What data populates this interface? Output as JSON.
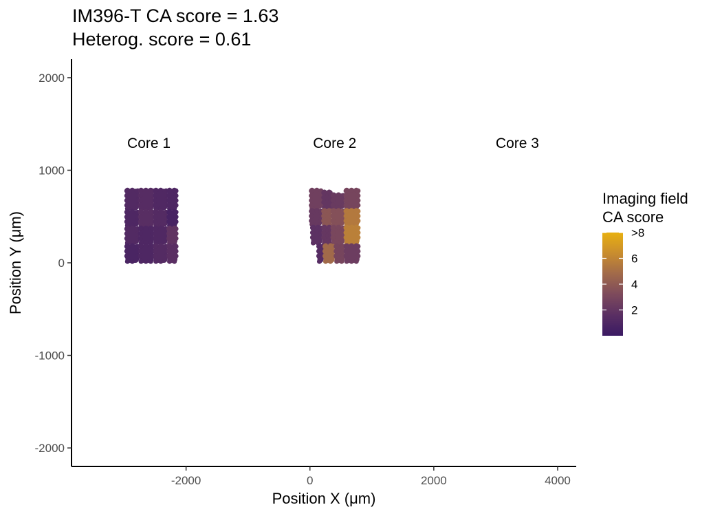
{
  "chart_data": {
    "type": "scatter",
    "title": "IM396-T  CA score = 1.63",
    "subtitle": "Heterog. score = 0.61",
    "xlabel": "Position X (μm)",
    "ylabel": "Position Y (μm)",
    "xlim": [
      -3850,
      4300
    ],
    "ylim": [
      -2200,
      2200
    ],
    "x_ticks": [
      -2000,
      0,
      2000,
      4000
    ],
    "x_tick_labels": [
      "-2000",
      "0",
      "2000",
      "4000"
    ],
    "y_ticks": [
      2000,
      1000,
      0,
      -1000,
      -2000
    ],
    "y_tick_labels": [
      "2000",
      "1000",
      "0",
      "-1000",
      "-2000"
    ],
    "grid": false,
    "legend_position": "right",
    "core_labels": [
      {
        "text": "Core 1",
        "x": -2600,
        "y": 1240
      },
      {
        "text": "Core 2",
        "x": 400,
        "y": 1240
      },
      {
        "text": "Core 3",
        "x": 3350,
        "y": 1240
      }
    ],
    "tiles": [
      {
        "x0": -2980,
        "x1": -2760,
        "y0": 570,
        "y1": 800,
        "ca": 1.2
      },
      {
        "x0": -2760,
        "x1": -2520,
        "y0": 570,
        "y1": 800,
        "ca": 1.4
      },
      {
        "x0": -2520,
        "x1": -2300,
        "y0": 570,
        "y1": 800,
        "ca": 1.1
      },
      {
        "x0": -2300,
        "x1": -2140,
        "y0": 570,
        "y1": 800,
        "ca": 1.0
      },
      {
        "x0": -2980,
        "x1": -2760,
        "y0": 390,
        "y1": 570,
        "ca": 1.0
      },
      {
        "x0": -2760,
        "x1": -2520,
        "y0": 390,
        "y1": 570,
        "ca": 1.5
      },
      {
        "x0": -2520,
        "x1": -2300,
        "y0": 390,
        "y1": 570,
        "ca": 1.3
      },
      {
        "x0": -2300,
        "x1": -2140,
        "y0": 390,
        "y1": 570,
        "ca": 0.7
      },
      {
        "x0": -2980,
        "x1": -2760,
        "y0": 200,
        "y1": 390,
        "ca": 1.2
      },
      {
        "x0": -2760,
        "x1": -2520,
        "y0": 200,
        "y1": 390,
        "ca": 1.0
      },
      {
        "x0": -2520,
        "x1": -2300,
        "y0": 200,
        "y1": 390,
        "ca": 1.1
      },
      {
        "x0": -2300,
        "x1": -2140,
        "y0": 200,
        "y1": 390,
        "ca": 1.9
      },
      {
        "x0": -2980,
        "x1": -2760,
        "y0": 0,
        "y1": 200,
        "ca": 0.8
      },
      {
        "x0": -2760,
        "x1": -2520,
        "y0": 0,
        "y1": 200,
        "ca": 1.0
      },
      {
        "x0": -2520,
        "x1": -2300,
        "y0": 0,
        "y1": 200,
        "ca": 1.3
      },
      {
        "x0": -2300,
        "x1": -2140,
        "y0": 0,
        "y1": 200,
        "ca": 1.6
      },
      {
        "x0": 0,
        "x1": 200,
        "y0": 580,
        "y1": 800,
        "ca": 2.6
      },
      {
        "x0": 200,
        "x1": 350,
        "y0": 580,
        "y1": 780,
        "ca": 2.0
      },
      {
        "x0": 350,
        "x1": 560,
        "y0": 580,
        "y1": 750,
        "ca": 2.3
      },
      {
        "x0": 560,
        "x1": 800,
        "y0": 580,
        "y1": 800,
        "ca": 2.9
      },
      {
        "x0": 0,
        "x1": 200,
        "y0": 400,
        "y1": 580,
        "ca": 2.2
      },
      {
        "x0": 200,
        "x1": 350,
        "y0": 400,
        "y1": 580,
        "ca": 3.8
      },
      {
        "x0": 350,
        "x1": 560,
        "y0": 400,
        "y1": 580,
        "ca": 3.5
      },
      {
        "x0": 560,
        "x1": 800,
        "y0": 400,
        "y1": 580,
        "ca": 5.5
      },
      {
        "x0": 20,
        "x1": 200,
        "y0": 200,
        "y1": 400,
        "ca": 1.7
      },
      {
        "x0": 200,
        "x1": 350,
        "y0": 200,
        "y1": 400,
        "ca": 2.1
      },
      {
        "x0": 350,
        "x1": 560,
        "y0": 200,
        "y1": 400,
        "ca": 3.0
      },
      {
        "x0": 560,
        "x1": 800,
        "y0": 200,
        "y1": 400,
        "ca": 5.8
      },
      {
        "x0": 120,
        "x1": 220,
        "y0": 0,
        "y1": 200,
        "ca": 1.4
      },
      {
        "x0": 220,
        "x1": 400,
        "y0": 0,
        "y1": 200,
        "ca": 4.8
      },
      {
        "x0": 400,
        "x1": 560,
        "y0": 0,
        "y1": 200,
        "ca": 2.9
      },
      {
        "x0": 560,
        "x1": 800,
        "y0": 0,
        "y1": 200,
        "ca": 2.4
      }
    ],
    "colorbar": {
      "title": "Imaging field CA score",
      "title_lines": [
        "Imaging field",
        "CA score"
      ],
      "range": [
        0,
        8
      ],
      "ticks": [
        2,
        4,
        6,
        8
      ],
      "tick_labels": [
        "2",
        "4",
        "6",
        ">8"
      ],
      "colors": [
        "#3a1a63",
        "#5a2f63",
        "#7d4a5c",
        "#a16a4a",
        "#c98d2e",
        "#e8b010"
      ]
    }
  }
}
